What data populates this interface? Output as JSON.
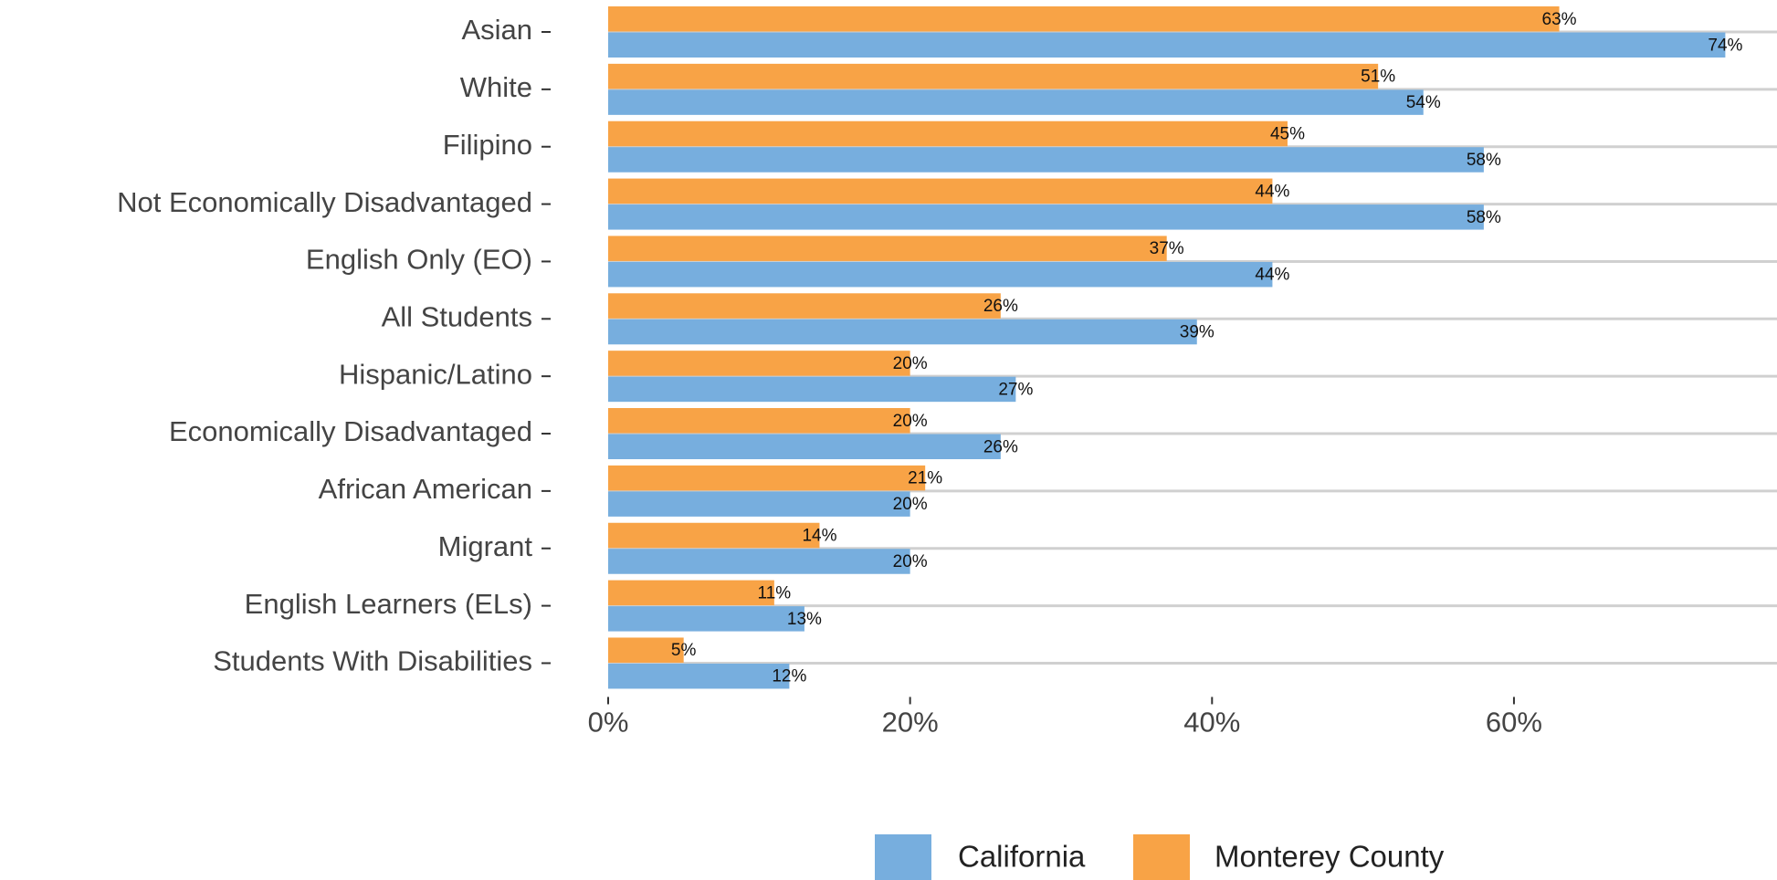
{
  "chart_data": {
    "type": "hbar",
    "categories": [
      "Asian",
      "White",
      "Filipino",
      "Not Economically Disadvantaged",
      "English Only (EO)",
      "All Students",
      "Hispanic/Latino",
      "Economically Disadvantaged",
      "African American",
      "Migrant",
      "English Learners (ELs)",
      "Students With Disabilities"
    ],
    "series": [
      {
        "name": "Monterey County",
        "color": "#f8a346",
        "values": [
          63,
          51,
          45,
          44,
          37,
          26,
          20,
          20,
          21,
          14,
          11,
          5
        ],
        "value_labels": [
          "63%",
          "51%",
          "45%",
          "44%",
          "37%",
          "26%",
          "20%",
          "20%",
          "21%",
          "14%",
          "11%",
          "5%"
        ]
      },
      {
        "name": "California",
        "color": "#77aede",
        "values": [
          74,
          54,
          58,
          58,
          44,
          39,
          27,
          26,
          20,
          20,
          13,
          12
        ],
        "value_labels": [
          "74%",
          "54%",
          "58%",
          "58%",
          "44%",
          "39%",
          "27%",
          "26%",
          "20%",
          "20%",
          "13%",
          "12%"
        ]
      }
    ],
    "xlim": [
      0,
      77
    ],
    "xticks": [
      {
        "value": 0,
        "label": "0%"
      },
      {
        "value": 20,
        "label": "20%"
      },
      {
        "value": 40,
        "label": "40%"
      },
      {
        "value": 60,
        "label": "60%"
      }
    ],
    "grid": true,
    "legend": "bottom"
  }
}
